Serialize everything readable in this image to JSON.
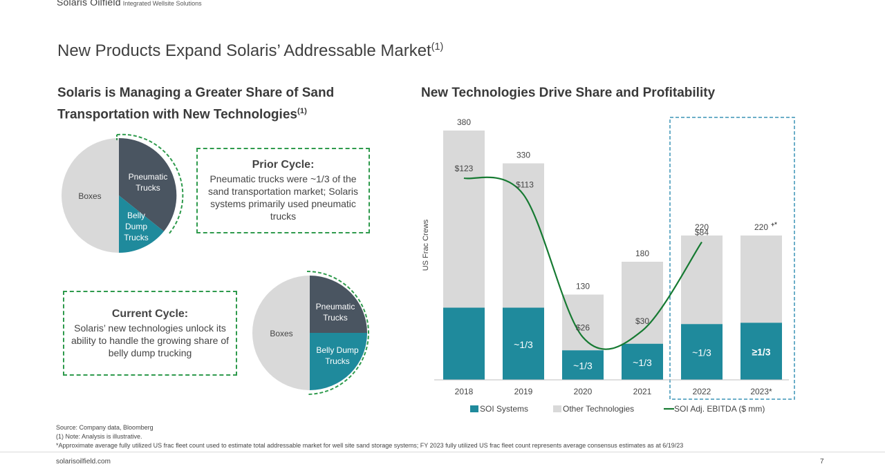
{
  "header": {
    "brand_name": "Solaris Oilfield",
    "brand_tagline": "Integrated Wellsite Solutions",
    "title": "New Products Expand Solaris’ Addressable Market",
    "title_sup": "(1)"
  },
  "left": {
    "heading_line1": "Solaris is Managing a Greater Share of Sand",
    "heading_line2": "Transportation with New Technologies",
    "heading_sup": "(1)",
    "prior_pie": {
      "boxes": "Boxes",
      "pneumatic_line1": "Pneumatic",
      "pneumatic_line2": "Trucks",
      "belly_line1": "Belly",
      "belly_line2": "Dump",
      "belly_line3": "Trucks"
    },
    "prior_callout": {
      "title": "Prior Cycle:",
      "body": "Pneumatic trucks were ~1/3 of the sand transportation market; Solaris systems primarily used pneumatic trucks"
    },
    "current_callout": {
      "title": "Current Cycle:",
      "body": "Solaris’ new technologies unlock its ability to handle the growing share of belly dump trucking"
    },
    "current_pie": {
      "boxes": "Boxes",
      "pneumatic_line1": "Pneumatic",
      "pneumatic_line2": "Trucks",
      "belly_line1": "Belly Dump",
      "belly_line2": "Trucks"
    }
  },
  "right": {
    "heading": "New Technologies Drive Share and Profitability"
  },
  "colors": {
    "teal": "#1f8a9c",
    "dark_slate": "#4a5561",
    "light_gray": "#d9d9d9",
    "green": "#167a32",
    "dash_green": "#2e9a4c",
    "dash_blue": "#3a93b5"
  },
  "chart_data": {
    "type": "bar",
    "ylabel": "US Frac Crews",
    "categories": [
      "2018",
      "2019",
      "2020",
      "2021",
      "2022",
      "2023*"
    ],
    "total_values": [
      380,
      330,
      130,
      180,
      220,
      220
    ],
    "total_labels": [
      "380",
      "330",
      "130",
      "180",
      "220",
      "220"
    ],
    "total_suffix": [
      "",
      "",
      "",
      "",
      "",
      "+*"
    ],
    "series": [
      {
        "name": "SOI Systems",
        "values": [
          110,
          110,
          45,
          55,
          85,
          87
        ]
      },
      {
        "name": "Other Technologies",
        "values": [
          270,
          220,
          85,
          125,
          135,
          133
        ]
      }
    ],
    "soi_share_labels": [
      "",
      "~1/3",
      "~1/3",
      "~1/3",
      "~1/3",
      "≥1/3"
    ],
    "ylim": [
      0,
      400
    ],
    "line_series": {
      "name": "SOI Adj. EBITDA ($ mm)",
      "values": [
        123,
        113,
        26,
        30,
        84
      ],
      "labels": [
        "$123",
        "$113",
        "$26",
        "$30",
        "$84"
      ],
      "ylim": [
        0,
        160
      ]
    },
    "legend": [
      "SOI Systems",
      "Other Technologies",
      "SOI Adj. EBITDA ($ mm)"
    ],
    "highlight_categories": [
      "2022",
      "2023*"
    ]
  },
  "footer": {
    "source": "Source: Company data, Bloomberg",
    "note1": "(1) Note: Analysis is illustrative.",
    "note2": "*Approximate average fully utilized US frac fleet count used to estimate total addressable market for well site sand storage systems; FY 2023 fully utilized US frac fleet count represents average consensus estimates as at 6/19/23",
    "website": "solarisoilfield.com",
    "page": "7"
  }
}
